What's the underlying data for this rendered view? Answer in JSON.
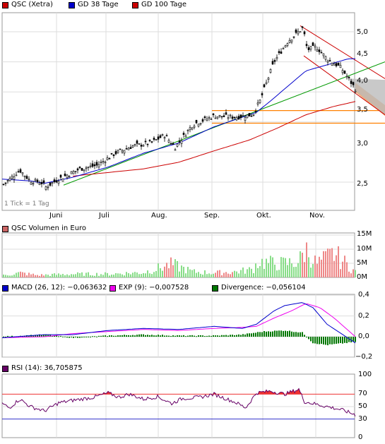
{
  "colors": {
    "price_up": "#00aa00",
    "price_down": "#cc0000",
    "gd38": "#0000cc",
    "gd100": "#cc0000",
    "trend_green": "#009900",
    "channel_red": "#cc0000",
    "support_orange": "#ff8000",
    "vol_up": "#88dd88",
    "vol_down": "#ee8888",
    "macd": "#0000cc",
    "exp": "#ee00ee",
    "divergence": "#007700",
    "rsi": "#660066",
    "rsi_over": "#ee3333",
    "rsi_upper_line": "#ee3333",
    "rsi_lower_line": "#3333cc",
    "grid": "#dddddd"
  },
  "price_legend": [
    {
      "label": "QSC (Xetra)",
      "color": "#cc0000"
    },
    {
      "label": "GD 38 Tage",
      "color": "#0000cc"
    },
    {
      "label": "GD 100 Tage",
      "color": "#cc0000"
    }
  ],
  "tick_note": "1 Tick = 1 Tag",
  "months": [
    "Juni",
    "Juli",
    "Aug.",
    "Sep.",
    "Okt.",
    "Nov."
  ],
  "price_ticks": [
    "5,0",
    "4,5",
    "4,0",
    "3,5",
    "3,0",
    "2,5"
  ],
  "volume_legend": {
    "label": "QSC Volumen in Euro",
    "color": "#cc6666"
  },
  "volume_ticks": [
    "15M",
    "10M",
    "5M",
    "0M"
  ],
  "macd_legend": [
    {
      "label": "MACD (26, 12): −0,063632",
      "color": "#0000cc"
    },
    {
      "label": "EXP (9): −0,007528",
      "color": "#ee00ee"
    },
    {
      "label": "Divergence: −0,056104",
      "color": "#007700"
    }
  ],
  "macd_ticks": [
    "0,4",
    "0,2",
    "0,0",
    "−0,2"
  ],
  "rsi_legend": {
    "label": "RSI (14): 36,705875",
    "color": "#660066"
  },
  "rsi_ticks": [
    "100",
    "70",
    "50",
    "30",
    "0"
  ],
  "chart_data": [
    {
      "type": "candlestick",
      "series": [
        {
          "name": "QSC (Xetra)",
          "key_points": [
            [
              0,
              2.44
            ],
            [
              25,
              2.7
            ],
            [
              40,
              2.52
            ],
            [
              55,
              2.5
            ],
            [
              62,
              2.42
            ],
            [
              80,
              2.55
            ],
            [
              110,
              2.72
            ],
            [
              135,
              2.78
            ],
            [
              160,
              2.98
            ],
            [
              185,
              3.1
            ],
            [
              210,
              3.15
            ],
            [
              230,
              3.28
            ],
            [
              245,
              3.08
            ],
            [
              270,
              3.46
            ],
            [
              300,
              3.6
            ],
            [
              330,
              3.58
            ],
            [
              355,
              3.62
            ],
            [
              365,
              3.85
            ],
            [
              385,
              4.5
            ],
            [
              405,
              4.85
            ],
            [
              420,
              5.0
            ],
            [
              426,
              5.07
            ],
            [
              432,
              4.7
            ],
            [
              445,
              4.75
            ],
            [
              460,
              4.55
            ],
            [
              480,
              4.4
            ],
            [
              500,
              4.05
            ]
          ]
        },
        {
          "name": "GD 38 Tage",
          "key_points": [
            [
              0,
              2.55
            ],
            [
              40,
              2.52
            ],
            [
              60,
              2.48
            ],
            [
              100,
              2.58
            ],
            [
              150,
              2.75
            ],
            [
              200,
              2.98
            ],
            [
              250,
              3.15
            ],
            [
              300,
              3.42
            ],
            [
              340,
              3.58
            ],
            [
              360,
              3.66
            ],
            [
              380,
              3.85
            ],
            [
              400,
              4.05
            ],
            [
              430,
              4.35
            ],
            [
              460,
              4.45
            ],
            [
              490,
              4.55
            ],
            [
              500,
              4.55
            ]
          ]
        },
        {
          "name": "GD 100 Tage",
          "key_points": [
            [
              100,
              2.6
            ],
            [
              150,
              2.66
            ],
            [
              200,
              2.72
            ],
            [
              250,
              2.83
            ],
            [
              300,
              3.02
            ],
            [
              350,
              3.2
            ],
            [
              390,
              3.4
            ],
            [
              430,
              3.62
            ],
            [
              470,
              3.76
            ],
            [
              500,
              3.84
            ]
          ]
        }
      ],
      "y_range": [
        2.2,
        5.4
      ],
      "x_labels": [
        "Juni",
        "Juli",
        "Aug.",
        "Sep.",
        "Okt.",
        "Nov."
      ],
      "grid": true,
      "legend": "top-left"
    },
    {
      "type": "bar",
      "series": [
        {
          "name": "QSC Volumen in Euro",
          "unit": "M",
          "key_points": [
            [
              0,
              0.8
            ],
            [
              25,
              2.0
            ],
            [
              50,
              1.0
            ],
            [
              100,
              1.5
            ],
            [
              150,
              1.5
            ],
            [
              200,
              2.2
            ],
            [
              240,
              5.8
            ],
            [
              270,
              2.5
            ],
            [
              300,
              2.0
            ],
            [
              330,
              2.5
            ],
            [
              355,
              3.5
            ],
            [
              362,
              7.0
            ],
            [
              375,
              6.5
            ],
            [
              390,
              6.0
            ],
            [
              410,
              6.5
            ],
            [
              420,
              7.0
            ],
            [
              430,
              12.5
            ],
            [
              445,
              6.0
            ],
            [
              470,
              10.5
            ],
            [
              500,
              2.5
            ]
          ]
        }
      ],
      "y_range": [
        0,
        15
      ],
      "grid": true,
      "legend": "top-left"
    },
    {
      "type": "line",
      "series": [
        {
          "name": "MACD (26, 12)",
          "key_points": [
            [
              0,
              -0.01
            ],
            [
              60,
              0.02
            ],
            [
              100,
              0.02
            ],
            [
              150,
              0.06
            ],
            [
              200,
              0.08
            ],
            [
              250,
              0.07
            ],
            [
              300,
              0.1
            ],
            [
              340,
              0.08
            ],
            [
              360,
              0.12
            ],
            [
              385,
              0.25
            ],
            [
              400,
              0.3
            ],
            [
              425,
              0.33
            ],
            [
              440,
              0.28
            ],
            [
              460,
              0.12
            ],
            [
              500,
              -0.06
            ]
          ]
        },
        {
          "name": "EXP (9)",
          "key_points": [
            [
              0,
              -0.01
            ],
            [
              60,
              0.0
            ],
            [
              100,
              0.03
            ],
            [
              150,
              0.05
            ],
            [
              200,
              0.07
            ],
            [
              250,
              0.06
            ],
            [
              300,
              0.08
            ],
            [
              340,
              0.09
            ],
            [
              360,
              0.1
            ],
            [
              385,
              0.18
            ],
            [
              410,
              0.25
            ],
            [
              430,
              0.32
            ],
            [
              450,
              0.28
            ],
            [
              470,
              0.18
            ],
            [
              500,
              0.0
            ]
          ]
        },
        {
          "name": "Divergence",
          "key_points": [
            [
              0,
              0.0
            ],
            [
              60,
              0.02
            ],
            [
              100,
              -0.01
            ],
            [
              150,
              0.01
            ],
            [
              200,
              0.02
            ],
            [
              250,
              0.01
            ],
            [
              300,
              0.01
            ],
            [
              340,
              0.02
            ],
            [
              370,
              0.05
            ],
            [
              400,
              0.06
            ],
            [
              425,
              0.04
            ],
            [
              440,
              -0.06
            ],
            [
              460,
              -0.08
            ],
            [
              500,
              -0.05
            ]
          ]
        }
      ],
      "y_range": [
        -0.25,
        0.45
      ],
      "grid": true,
      "legend": "top-left"
    },
    {
      "type": "line",
      "series": [
        {
          "name": "RSI (14)",
          "key_points": [
            [
              0,
              55
            ],
            [
              10,
              48
            ],
            [
              25,
              62
            ],
            [
              40,
              50
            ],
            [
              60,
              43
            ],
            [
              80,
              56
            ],
            [
              100,
              60
            ],
            [
              130,
              65
            ],
            [
              150,
              72
            ],
            [
              165,
              65
            ],
            [
              180,
              70
            ],
            [
              200,
              62
            ],
            [
              220,
              66
            ],
            [
              240,
              55
            ],
            [
              255,
              63
            ],
            [
              280,
              65
            ],
            [
              300,
              70
            ],
            [
              330,
              57
            ],
            [
              345,
              48
            ],
            [
              360,
              72
            ],
            [
              380,
              75
            ],
            [
              400,
              70
            ],
            [
              420,
              78
            ],
            [
              428,
              58
            ],
            [
              440,
              55
            ],
            [
              460,
              50
            ],
            [
              480,
              45
            ],
            [
              500,
              37
            ]
          ]
        }
      ],
      "y_range": [
        0,
        100
      ],
      "guides": [
        70,
        30
      ],
      "grid": true,
      "legend": "top-left"
    }
  ]
}
